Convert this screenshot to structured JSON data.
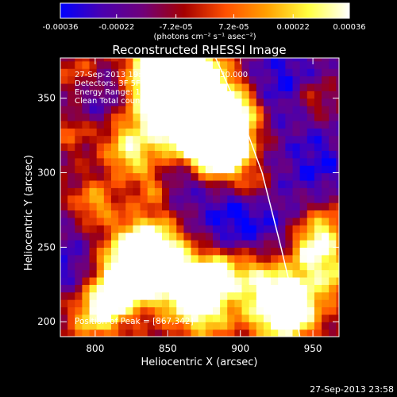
{
  "chart_data": {
    "type": "heatmap",
    "title": "Reconstructed RHESSI Image",
    "xlabel": "Heliocentric X (arcsec)",
    "ylabel": "Heliocentric Y (arcsec)",
    "xlim": [
      776,
      968
    ],
    "ylim": [
      190,
      377
    ],
    "x_ticks": [
      "800",
      "850",
      "900",
      "950"
    ],
    "x_tick_values": [
      800,
      850,
      900,
      950
    ],
    "y_ticks": [
      "200",
      "250",
      "300",
      "350"
    ],
    "y_tick_values": [
      200,
      250,
      300,
      350
    ],
    "colorbar": {
      "min": -0.00036,
      "max": 0.00036,
      "ticks": [
        "-0.00036",
        "-0.00022",
        "-7.2e-05",
        "7.2e-05",
        "0.00022",
        "0.00036"
      ],
      "tick_values": [
        -0.00036,
        -0.00022,
        -7.2e-05,
        7.2e-05,
        0.00022,
        0.00036
      ],
      "units_label": "(photons cm⁻² s⁻¹ asec⁻²)",
      "colors": [
        "#0000ff",
        "#4a00b0",
        "#70007a",
        "#a50000",
        "#ff5000",
        "#ffa000",
        "#ffff40",
        "#ffffff"
      ]
    },
    "annotations": [
      "27-Sep-2013 19:41:48.000 to 19:45:30.000",
      "Detectors: 3F 5F 6F 7F 8F 9F, Att 0",
      "Energy Range: 12.0 - 25.0 keV",
      "Clean    Total counts: 6.54E+03"
    ],
    "peak_label": "Position of Peak = [867,342]",
    "peak_position": [
      867,
      342
    ],
    "limb_curve": [
      [
        883,
        377
      ],
      [
        900,
        340
      ],
      [
        915,
        300
      ],
      [
        928,
        250
      ],
      [
        937,
        213
      ],
      [
        941,
        190
      ]
    ]
  },
  "footer_timestamp": "27-Sep-2013 23:58"
}
